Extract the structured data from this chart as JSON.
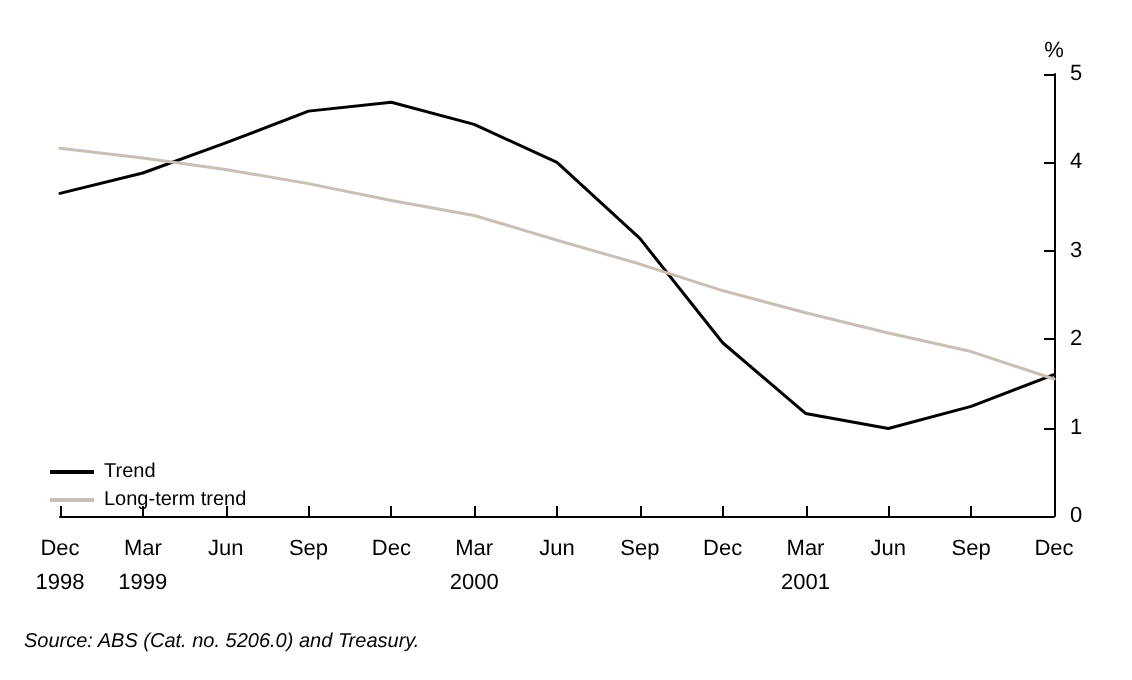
{
  "chart_data": {
    "type": "line",
    "ylabel": "%",
    "categories": [
      "Dec\n1998",
      "Mar\n1999",
      "Jun",
      "Sep",
      "Dec",
      "Mar\n2000",
      "Jun",
      "Sep",
      "Dec",
      "Mar\n2001",
      "Jun",
      "Sep",
      "Dec"
    ],
    "series": [
      {
        "name": "Trend",
        "color": "#000000",
        "values": [
          3.65,
          3.88,
          4.22,
          4.58,
          4.68,
          4.43,
          4.0,
          3.14,
          1.96,
          1.16,
          0.99,
          1.24,
          1.6
        ]
      },
      {
        "name": "Long-term trend",
        "color": "#c8bfb6",
        "values": [
          4.16,
          4.05,
          3.92,
          3.76,
          3.57,
          3.4,
          3.12,
          2.85,
          2.55,
          2.3,
          2.07,
          1.86,
          1.55
        ]
      }
    ],
    "ylim": [
      0,
      5
    ],
    "yticks": [
      0,
      1,
      2,
      3,
      4,
      5
    ],
    "grid": false,
    "legend": "bottom left",
    "marker": "none",
    "line_style": "solid",
    "annotations": [
      "Source: ABS (Cat. no. 5206.0) and Treasury."
    ]
  }
}
